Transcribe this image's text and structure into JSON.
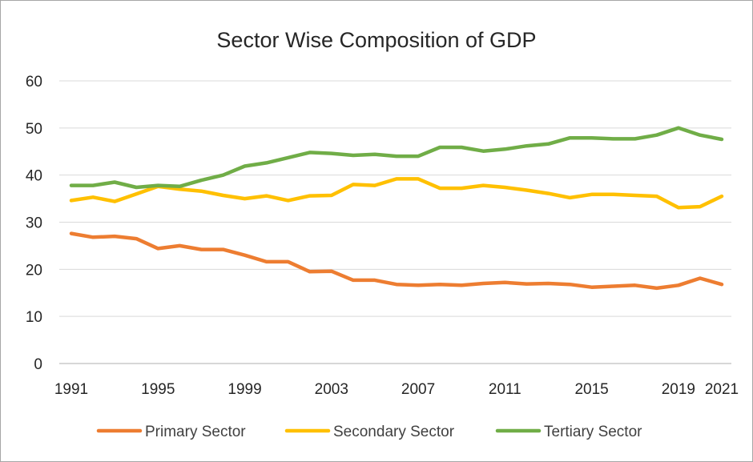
{
  "chart_data": {
    "type": "line",
    "title": "Sector Wise Composition of GDP",
    "xlabel": "",
    "ylabel": "",
    "x": [
      1991,
      1992,
      1993,
      1994,
      1995,
      1996,
      1997,
      1998,
      1999,
      2000,
      2001,
      2002,
      2003,
      2004,
      2005,
      2006,
      2007,
      2008,
      2009,
      2010,
      2011,
      2012,
      2013,
      2014,
      2015,
      2016,
      2017,
      2018,
      2019,
      2020,
      2021
    ],
    "x_tick_labels": [
      "1991",
      "1995",
      "1999",
      "2003",
      "2007",
      "2011",
      "2015",
      "2019",
      "2021"
    ],
    "x_ticks": [
      1991,
      1995,
      1999,
      2003,
      2007,
      2011,
      2015,
      2019,
      2021
    ],
    "ylim": [
      0,
      60
    ],
    "y_ticks": [
      0,
      10,
      20,
      30,
      40,
      50,
      60
    ],
    "y_tick_labels": [
      "0",
      "10",
      "20",
      "30",
      "40",
      "50",
      "60"
    ],
    "grid": true,
    "legend_position": "bottom",
    "series": [
      {
        "name": "Primary Sector",
        "color": "#ed7d31",
        "values": [
          27.6,
          26.8,
          27.0,
          26.5,
          24.4,
          25.0,
          24.2,
          24.2,
          23.0,
          21.6,
          21.6,
          19.5,
          19.6,
          17.7,
          17.7,
          16.8,
          16.6,
          16.8,
          16.6,
          17.0,
          17.2,
          16.9,
          17.0,
          16.8,
          16.2,
          16.4,
          16.6,
          16.0,
          16.6,
          18.1,
          16.8
        ]
      },
      {
        "name": "Secondary Sector",
        "color": "#ffc000",
        "values": [
          34.6,
          35.3,
          34.4,
          36.0,
          37.6,
          37.0,
          36.6,
          35.7,
          35.0,
          35.6,
          34.6,
          35.6,
          35.7,
          38.0,
          37.8,
          39.2,
          39.2,
          37.2,
          37.2,
          37.8,
          37.4,
          36.8,
          36.1,
          35.2,
          35.9,
          35.9,
          35.7,
          35.5,
          33.1,
          33.3,
          35.5
        ]
      },
      {
        "name": "Tertiary Sector",
        "color": "#70ad47",
        "values": [
          37.8,
          37.8,
          38.5,
          37.4,
          37.8,
          37.6,
          38.9,
          40.0,
          41.9,
          42.6,
          43.7,
          44.8,
          44.6,
          44.2,
          44.4,
          44.0,
          44.0,
          45.9,
          45.9,
          45.1,
          45.5,
          46.2,
          46.6,
          47.9,
          47.9,
          47.7,
          47.7,
          48.5,
          50.0,
          48.5,
          47.6
        ]
      }
    ]
  }
}
